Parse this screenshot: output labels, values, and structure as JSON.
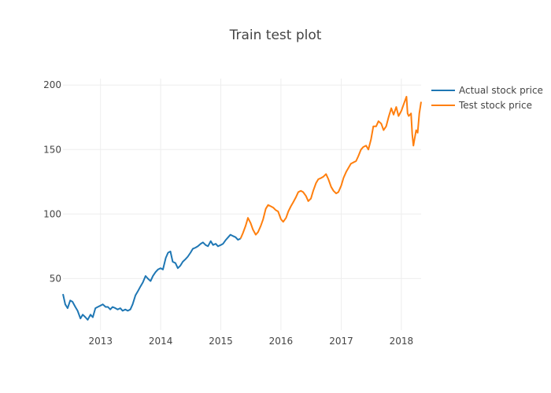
{
  "chart_data": {
    "type": "line",
    "title": "Train test plot",
    "xlabel": "",
    "ylabel": "",
    "x_ticks": [
      "2013",
      "2014",
      "2015",
      "2016",
      "2017",
      "2018"
    ],
    "y_ticks": [
      50,
      100,
      150,
      200
    ],
    "xlim": [
      "2012-05-18",
      "2018-05-01"
    ],
    "ylim": [
      10,
      205
    ],
    "grid": true,
    "legend_position": "top-right",
    "series": [
      {
        "name": "Actual stock price",
        "color": "#1f77b4",
        "points": [
          [
            "2012-05-18",
            38
          ],
          [
            "2012-06-01",
            30
          ],
          [
            "2012-06-15",
            27
          ],
          [
            "2012-07-01",
            33
          ],
          [
            "2012-07-15",
            32
          ],
          [
            "2012-08-01",
            28
          ],
          [
            "2012-08-15",
            25
          ],
          [
            "2012-09-01",
            19
          ],
          [
            "2012-09-15",
            22
          ],
          [
            "2012-10-01",
            20
          ],
          [
            "2012-10-15",
            18
          ],
          [
            "2012-11-01",
            22
          ],
          [
            "2012-11-15",
            20
          ],
          [
            "2012-12-01",
            27
          ],
          [
            "2012-12-15",
            28
          ],
          [
            "2013-01-01",
            29
          ],
          [
            "2013-01-15",
            30
          ],
          [
            "2013-02-01",
            28
          ],
          [
            "2013-02-15",
            28
          ],
          [
            "2013-03-01",
            26
          ],
          [
            "2013-03-15",
            28
          ],
          [
            "2013-04-01",
            27
          ],
          [
            "2013-04-15",
            26
          ],
          [
            "2013-05-01",
            27
          ],
          [
            "2013-05-15",
            25
          ],
          [
            "2013-06-01",
            26
          ],
          [
            "2013-06-15",
            25
          ],
          [
            "2013-07-01",
            26
          ],
          [
            "2013-07-15",
            30
          ],
          [
            "2013-08-01",
            37
          ],
          [
            "2013-08-15",
            40
          ],
          [
            "2013-09-01",
            44
          ],
          [
            "2013-09-15",
            47
          ],
          [
            "2013-10-01",
            52
          ],
          [
            "2013-10-15",
            50
          ],
          [
            "2013-11-01",
            48
          ],
          [
            "2013-11-15",
            52
          ],
          [
            "2013-12-01",
            55
          ],
          [
            "2013-12-15",
            57
          ],
          [
            "2014-01-01",
            58
          ],
          [
            "2014-01-15",
            57
          ],
          [
            "2014-02-01",
            66
          ],
          [
            "2014-02-15",
            70
          ],
          [
            "2014-03-01",
            71
          ],
          [
            "2014-03-15",
            63
          ],
          [
            "2014-04-01",
            62
          ],
          [
            "2014-04-15",
            58
          ],
          [
            "2014-05-01",
            60
          ],
          [
            "2014-05-15",
            63
          ],
          [
            "2014-06-01",
            65
          ],
          [
            "2014-06-15",
            67
          ],
          [
            "2014-07-01",
            70
          ],
          [
            "2014-07-15",
            73
          ],
          [
            "2014-08-01",
            74
          ],
          [
            "2014-08-15",
            75
          ],
          [
            "2014-09-01",
            77
          ],
          [
            "2014-09-15",
            78
          ],
          [
            "2014-10-01",
            76
          ],
          [
            "2014-10-15",
            75
          ],
          [
            "2014-11-01",
            79
          ],
          [
            "2014-11-15",
            76
          ],
          [
            "2014-12-01",
            77
          ],
          [
            "2014-12-15",
            75
          ],
          [
            "2015-01-01",
            76
          ],
          [
            "2015-01-15",
            77
          ],
          [
            "2015-02-01",
            80
          ],
          [
            "2015-02-15",
            82
          ],
          [
            "2015-03-01",
            84
          ],
          [
            "2015-03-15",
            83
          ],
          [
            "2015-04-01",
            82
          ],
          [
            "2015-04-15",
            80
          ],
          [
            "2015-05-01",
            81
          ]
        ]
      },
      {
        "name": "Test stock price",
        "color": "#ff7f0e",
        "points": [
          [
            "2015-05-01",
            81
          ],
          [
            "2015-05-15",
            85
          ],
          [
            "2015-06-01",
            91
          ],
          [
            "2015-06-15",
            97
          ],
          [
            "2015-07-01",
            93
          ],
          [
            "2015-07-15",
            88
          ],
          [
            "2015-08-01",
            84
          ],
          [
            "2015-08-15",
            86
          ],
          [
            "2015-09-01",
            91
          ],
          [
            "2015-09-15",
            96
          ],
          [
            "2015-10-01",
            104
          ],
          [
            "2015-10-15",
            107
          ],
          [
            "2015-11-01",
            106
          ],
          [
            "2015-11-15",
            105
          ],
          [
            "2015-12-01",
            103
          ],
          [
            "2015-12-15",
            102
          ],
          [
            "2016-01-01",
            96
          ],
          [
            "2016-01-15",
            94
          ],
          [
            "2016-02-01",
            97
          ],
          [
            "2016-02-15",
            102
          ],
          [
            "2016-03-01",
            106
          ],
          [
            "2016-03-15",
            109
          ],
          [
            "2016-04-01",
            113
          ],
          [
            "2016-04-15",
            117
          ],
          [
            "2016-05-01",
            118
          ],
          [
            "2016-05-15",
            117
          ],
          [
            "2016-06-01",
            114
          ],
          [
            "2016-06-15",
            110
          ],
          [
            "2016-07-01",
            112
          ],
          [
            "2016-07-15",
            118
          ],
          [
            "2016-08-01",
            124
          ],
          [
            "2016-08-15",
            127
          ],
          [
            "2016-09-01",
            128
          ],
          [
            "2016-09-15",
            129
          ],
          [
            "2016-10-01",
            131
          ],
          [
            "2016-10-15",
            127
          ],
          [
            "2016-11-01",
            121
          ],
          [
            "2016-11-15",
            118
          ],
          [
            "2016-12-01",
            116
          ],
          [
            "2016-12-15",
            117
          ],
          [
            "2017-01-01",
            122
          ],
          [
            "2017-01-15",
            128
          ],
          [
            "2017-02-01",
            133
          ],
          [
            "2017-02-15",
            136
          ],
          [
            "2017-03-01",
            139
          ],
          [
            "2017-03-15",
            140
          ],
          [
            "2017-04-01",
            141
          ],
          [
            "2017-04-15",
            145
          ],
          [
            "2017-05-01",
            150
          ],
          [
            "2017-05-15",
            152
          ],
          [
            "2017-06-01",
            153
          ],
          [
            "2017-06-15",
            150
          ],
          [
            "2017-07-01",
            158
          ],
          [
            "2017-07-15",
            168
          ],
          [
            "2017-08-01",
            168
          ],
          [
            "2017-08-15",
            172
          ],
          [
            "2017-09-01",
            170
          ],
          [
            "2017-09-15",
            165
          ],
          [
            "2017-10-01",
            168
          ],
          [
            "2017-10-15",
            175
          ],
          [
            "2017-11-01",
            182
          ],
          [
            "2017-11-15",
            177
          ],
          [
            "2017-12-01",
            183
          ],
          [
            "2017-12-15",
            176
          ],
          [
            "2018-01-01",
            180
          ],
          [
            "2018-01-15",
            185
          ],
          [
            "2018-02-01",
            191
          ],
          [
            "2018-02-08",
            178
          ],
          [
            "2018-02-15",
            176
          ],
          [
            "2018-03-01",
            178
          ],
          [
            "2018-03-08",
            162
          ],
          [
            "2018-03-15",
            153
          ],
          [
            "2018-03-22",
            158
          ],
          [
            "2018-04-01",
            165
          ],
          [
            "2018-04-10",
            163
          ],
          [
            "2018-04-20",
            178
          ],
          [
            "2018-05-01",
            187
          ]
        ]
      }
    ]
  }
}
